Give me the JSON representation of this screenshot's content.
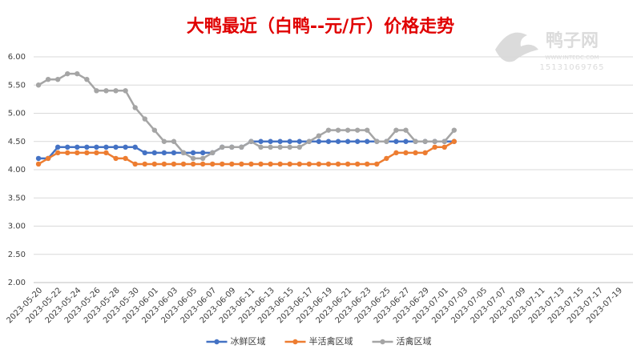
{
  "chart_data": {
    "type": "line",
    "title": "大鸭最近（白鸭--元/斤）价格走势",
    "categories": [
      "2023-05-20",
      null,
      "2023-05-22",
      null,
      "2023-05-24",
      null,
      "2023-05-26",
      null,
      "2023-05-28",
      null,
      "2023-05-30",
      null,
      "2023-06-01",
      null,
      "2023-06-03",
      null,
      "2023-06-05",
      null,
      "2023-06-07",
      null,
      "2023-06-09",
      null,
      "2023-06-11",
      null,
      "2023-06-13",
      null,
      "2023-06-15",
      null,
      "2023-06-17",
      null,
      "2023-06-19",
      null,
      "2023-06-21",
      null,
      "2023-06-23",
      null,
      "2023-06-25",
      null,
      "2023-06-27",
      null,
      "2023-06-29",
      null,
      "2023-07-01",
      null,
      "2023-07-03",
      null,
      "2023-07-05",
      null,
      "2023-07-07",
      null,
      "2023-07-09",
      null,
      "2023-07-11",
      null,
      "2023-07-13",
      null,
      "2023-07-15",
      null,
      "2023-07-17",
      null,
      "2023-07-19",
      null
    ],
    "series": [
      {
        "name": "冰鲜区域",
        "color": "#4472c4",
        "values": [
          4.2,
          4.2,
          4.4,
          4.4,
          4.4,
          4.4,
          4.4,
          4.4,
          4.4,
          4.4,
          4.4,
          4.3,
          4.3,
          4.3,
          4.3,
          4.3,
          4.3,
          4.3,
          4.3,
          4.4,
          4.4,
          4.4,
          4.5,
          4.5,
          4.5,
          4.5,
          4.5,
          4.5,
          4.5,
          4.5,
          4.5,
          4.5,
          4.5,
          4.5,
          4.5,
          4.5,
          4.5,
          4.5,
          4.5,
          4.5,
          4.5,
          4.5,
          4.5,
          4.5,
          null,
          null,
          null,
          null,
          null,
          null,
          null,
          null,
          null,
          null,
          null,
          null,
          null,
          null,
          null,
          null,
          null,
          null
        ]
      },
      {
        "name": "半活禽区域",
        "color": "#ed7d31",
        "values": [
          4.1,
          4.2,
          4.3,
          4.3,
          4.3,
          4.3,
          4.3,
          4.3,
          4.2,
          4.2,
          4.1,
          4.1,
          4.1,
          4.1,
          4.1,
          4.1,
          4.1,
          4.1,
          4.1,
          4.1,
          4.1,
          4.1,
          4.1,
          4.1,
          4.1,
          4.1,
          4.1,
          4.1,
          4.1,
          4.1,
          4.1,
          4.1,
          4.1,
          4.1,
          4.1,
          4.1,
          4.2,
          4.3,
          4.3,
          4.3,
          4.3,
          4.4,
          4.4,
          4.5,
          null,
          null,
          null,
          null,
          null,
          null,
          null,
          null,
          null,
          null,
          null,
          null,
          null,
          null,
          null,
          null,
          null,
          null
        ]
      },
      {
        "name": "活禽区域",
        "color": "#a5a5a5",
        "values": [
          5.5,
          5.6,
          5.6,
          5.7,
          5.7,
          5.6,
          5.4,
          5.4,
          5.4,
          5.4,
          5.1,
          4.9,
          4.7,
          4.5,
          4.5,
          4.3,
          4.2,
          4.2,
          4.3,
          4.4,
          4.4,
          4.4,
          4.5,
          4.4,
          4.4,
          4.4,
          4.4,
          4.4,
          4.5,
          4.6,
          4.7,
          4.7,
          4.7,
          4.7,
          4.7,
          4.5,
          4.5,
          4.7,
          4.7,
          4.5,
          4.5,
          4.5,
          4.5,
          4.7,
          null,
          null,
          null,
          null,
          null,
          null,
          null,
          null,
          null,
          null,
          null,
          null,
          null,
          null,
          null,
          null,
          null,
          null
        ]
      }
    ],
    "ylim": [
      2,
      6
    ],
    "yticks": [
      {
        "value": 2,
        "label": "2.00"
      },
      {
        "value": 2.5,
        "label": "2.50"
      },
      {
        "value": 3,
        "label": "3.00"
      },
      {
        "value": 3.5,
        "label": "3.50"
      },
      {
        "value": 4,
        "label": "4.00"
      },
      {
        "value": 4.5,
        "label": "4.50"
      },
      {
        "value": 5,
        "label": "5.00"
      },
      {
        "value": 5.5,
        "label": "5.50"
      },
      {
        "value": 6,
        "label": "6.00"
      }
    ],
    "legend": "bottom"
  },
  "watermark": {
    "name": "鸭子网",
    "url": "WWW.INTEDC.COM",
    "phone": "15131069765"
  }
}
